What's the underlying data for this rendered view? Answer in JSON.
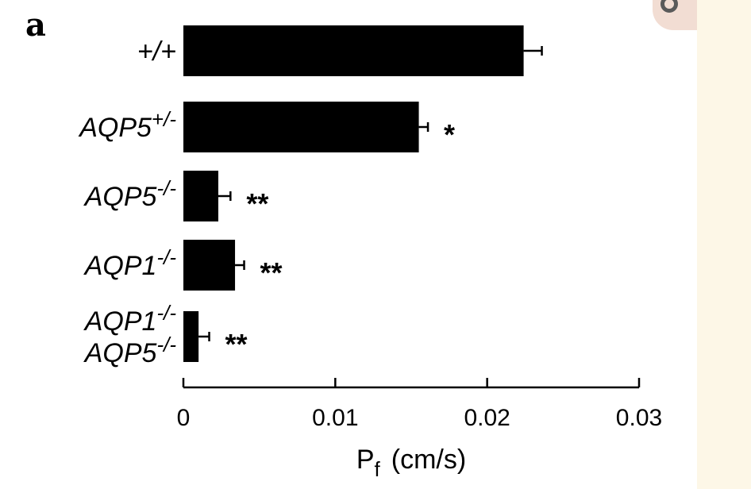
{
  "panel_label": "a",
  "chart_data": {
    "type": "bar",
    "orientation": "horizontal",
    "categories": [
      {
        "base": "",
        "sup": "+/+"
      },
      {
        "base": "AQP5",
        "sup": "+/-"
      },
      {
        "base": "AQP5",
        "sup": "-/-"
      },
      {
        "base": "AQP1",
        "sup": "-/-"
      },
      {
        "lines": [
          {
            "base": "AQP1",
            "sup": "-/-"
          },
          {
            "base": "AQP5",
            "sup": "-/-"
          }
        ]
      }
    ],
    "values": [
      0.0224,
      0.0155,
      0.0023,
      0.0034,
      0.001
    ],
    "errors": [
      0.0012,
      0.0006,
      0.0008,
      0.0006,
      0.0007
    ],
    "significance": [
      "",
      "*",
      "**",
      "**",
      "**"
    ],
    "xlim": [
      0,
      0.03
    ],
    "xticks": [
      0,
      0.01,
      0.02,
      0.03
    ],
    "xtick_labels": [
      "0",
      "0.01",
      "0.02",
      "0.03"
    ],
    "xlabel": {
      "main": "P",
      "sub": "f",
      "unit": "(cm/s)"
    },
    "ylabel": "",
    "title": "",
    "grid": false,
    "bar_color": "#000000"
  }
}
